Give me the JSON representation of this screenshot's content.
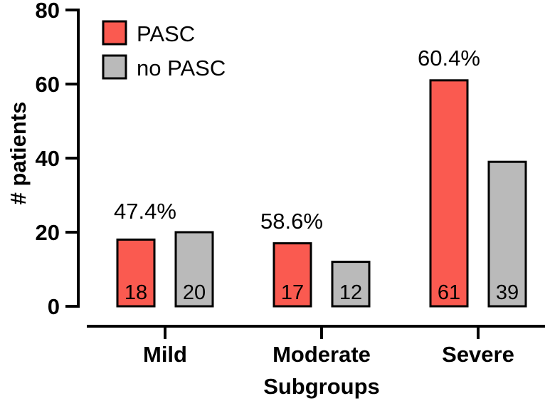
{
  "chart_data": {
    "type": "bar",
    "xlabel": "Subgroups",
    "ylabel": "# patients",
    "ylim": [
      0,
      80
    ],
    "yticks": [
      0,
      20,
      40,
      60,
      80
    ],
    "categories": [
      "Mild",
      "Moderate",
      "Severe"
    ],
    "series": [
      {
        "name": "PASC",
        "color": "#fa5a50",
        "values": [
          18,
          17,
          61
        ]
      },
      {
        "name": "no PASC",
        "color": "#bababa",
        "values": [
          20,
          12,
          39
        ]
      }
    ],
    "annotations": [
      "47.4%",
      "58.6%",
      "60.4%"
    ],
    "legend_position": "top-left",
    "grid": false
  }
}
